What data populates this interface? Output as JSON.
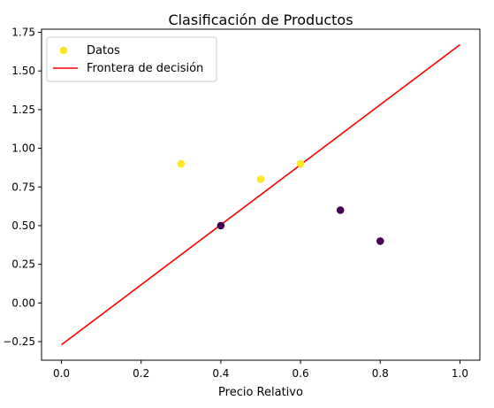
{
  "chart_data": {
    "type": "scatter",
    "title": "Clasificación de Productos",
    "xlabel": "Precio Relativo",
    "ylabel": "",
    "xlim": [
      -0.05,
      1.05
    ],
    "ylim": [
      -0.37,
      1.77
    ],
    "xticks": [
      0.0,
      0.2,
      0.4,
      0.6,
      0.8,
      1.0
    ],
    "xtick_labels": [
      "0.0",
      "0.2",
      "0.4",
      "0.6",
      "0.8",
      "1.0"
    ],
    "yticks": [
      -0.25,
      0.0,
      0.25,
      0.5,
      0.75,
      1.0,
      1.25,
      1.5,
      1.75
    ],
    "ytick_labels": [
      "−0.25",
      "0.00",
      "0.25",
      "0.50",
      "0.75",
      "1.00",
      "1.25",
      "1.50",
      "1.75"
    ],
    "grid": false,
    "legend_position": "top-left",
    "points": [
      {
        "x": 0.3,
        "y": 0.9,
        "class": 1
      },
      {
        "x": 0.5,
        "y": 0.8,
        "class": 1
      },
      {
        "x": 0.6,
        "y": 0.9,
        "class": 1
      },
      {
        "x": 0.4,
        "y": 0.5,
        "class": 0
      },
      {
        "x": 0.7,
        "y": 0.6,
        "class": 0
      },
      {
        "x": 0.8,
        "y": 0.4,
        "class": 0
      }
    ],
    "class_colors": {
      "0": "#440154",
      "1": "#fde725"
    },
    "series": [
      {
        "name": "Datos",
        "kind": "scatter",
        "color": "#fde725"
      },
      {
        "name": "Frontera de decisión",
        "kind": "line",
        "color": "#ff0000",
        "x": [
          0.0,
          1.0
        ],
        "y": [
          -0.27,
          1.67
        ]
      }
    ]
  }
}
